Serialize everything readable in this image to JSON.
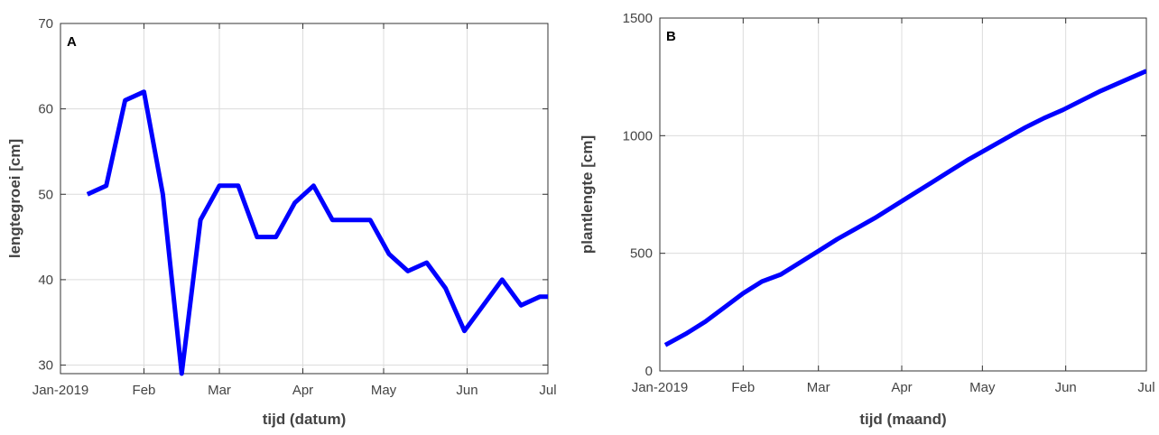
{
  "chart_data": [
    {
      "type": "line",
      "panel_label": "A",
      "xlabel": "tijd (datum)",
      "ylabel": "lengtegroei [cm]",
      "ylim": [
        29,
        70
      ],
      "yticks": [
        30,
        40,
        50,
        60,
        70
      ],
      "xlim": [
        "2019-01-01",
        "2019-07-01"
      ],
      "xticks": [
        {
          "date": "2019-01-01",
          "label": "Jan-2019"
        },
        {
          "date": "2019-02-01",
          "label": "Feb"
        },
        {
          "date": "2019-03-01",
          "label": "Mar"
        },
        {
          "date": "2019-04-01",
          "label": "Apr"
        },
        {
          "date": "2019-05-01",
          "label": "May"
        },
        {
          "date": "2019-06-01",
          "label": "Jun"
        },
        {
          "date": "2019-07-01",
          "label": "Jul"
        }
      ],
      "grid": true,
      "color": "#0000ff",
      "series": [
        {
          "x": [
            "2019-01-11",
            "2019-01-18",
            "2019-01-25",
            "2019-02-01",
            "2019-02-08",
            "2019-02-15",
            "2019-02-22",
            "2019-03-01",
            "2019-03-08",
            "2019-03-15",
            "2019-03-22",
            "2019-03-29",
            "2019-04-05",
            "2019-04-12",
            "2019-04-19",
            "2019-04-26",
            "2019-05-03",
            "2019-05-10",
            "2019-05-17",
            "2019-05-24",
            "2019-05-31",
            "2019-06-07",
            "2019-06-14",
            "2019-06-21",
            "2019-06-28",
            "2019-07-01"
          ],
          "y": [
            50,
            51,
            61,
            62,
            50,
            29,
            47,
            51,
            51,
            45,
            45,
            49,
            51,
            47,
            47,
            47,
            43,
            41,
            42,
            39,
            34,
            37,
            40,
            37,
            38,
            38
          ]
        }
      ]
    },
    {
      "type": "line",
      "panel_label": "B",
      "xlabel": "tijd (maand)",
      "ylabel": "plantlengte [cm]",
      "ylim": [
        0,
        1500
      ],
      "yticks": [
        0,
        500,
        1000,
        1500
      ],
      "xlim": [
        "2019-01-01",
        "2019-07-01"
      ],
      "xticks": [
        {
          "date": "2019-01-01",
          "label": "Jan-2019"
        },
        {
          "date": "2019-02-01",
          "label": "Feb"
        },
        {
          "date": "2019-03-01",
          "label": "Mar"
        },
        {
          "date": "2019-04-01",
          "label": "Apr"
        },
        {
          "date": "2019-05-01",
          "label": "May"
        },
        {
          "date": "2019-06-01",
          "label": "Jun"
        },
        {
          "date": "2019-07-01",
          "label": "Jul"
        }
      ],
      "grid": true,
      "color": "#0000ff",
      "series": [
        {
          "x": [
            "2019-01-03",
            "2019-01-11",
            "2019-01-18",
            "2019-01-25",
            "2019-02-01",
            "2019-02-08",
            "2019-02-15",
            "2019-02-22",
            "2019-03-01",
            "2019-03-08",
            "2019-03-15",
            "2019-03-22",
            "2019-03-29",
            "2019-04-05",
            "2019-04-12",
            "2019-04-19",
            "2019-04-26",
            "2019-05-03",
            "2019-05-10",
            "2019-05-17",
            "2019-05-24",
            "2019-05-31",
            "2019-06-07",
            "2019-06-14",
            "2019-06-21",
            "2019-06-28",
            "2019-07-01"
          ],
          "y": [
            110,
            160,
            210,
            270,
            330,
            380,
            410,
            460,
            510,
            560,
            605,
            650,
            700,
            750,
            800,
            850,
            900,
            945,
            990,
            1035,
            1075,
            1110,
            1150,
            1190,
            1225,
            1260,
            1275
          ]
        }
      ]
    }
  ]
}
